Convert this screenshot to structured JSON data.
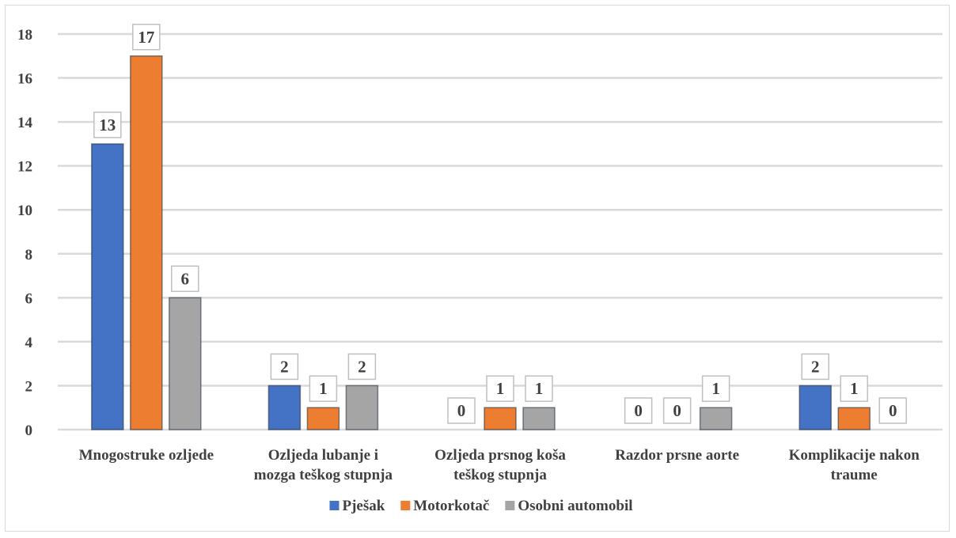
{
  "chart_data": {
    "type": "bar",
    "title": "",
    "xlabel": "",
    "ylabel": "",
    "categories": [
      [
        "Mnogostruke ozljede"
      ],
      [
        "Ozljeda lubanje i",
        "mozga teškog stupnja"
      ],
      [
        "Ozljeda prsnog koša",
        "teškog stupnja"
      ],
      [
        "Razdor prsne aorte"
      ],
      [
        "Komplikacije nakon",
        "traume"
      ]
    ],
    "series": [
      {
        "name": "Pješak",
        "color": "#4472c4",
        "values": [
          13,
          2,
          0,
          0,
          2
        ]
      },
      {
        "name": "Motorkotač",
        "color": "#ed7d31",
        "values": [
          17,
          1,
          1,
          0,
          1
        ]
      },
      {
        "name": "Osobni automobil",
        "color": "#a5a5a5",
        "values": [
          6,
          2,
          1,
          1,
          0
        ]
      }
    ],
    "ylim": [
      0,
      18
    ],
    "yticks": [
      0,
      2,
      4,
      6,
      8,
      10,
      12,
      14,
      16,
      18
    ],
    "grid": true,
    "legend_position": "bottom"
  }
}
